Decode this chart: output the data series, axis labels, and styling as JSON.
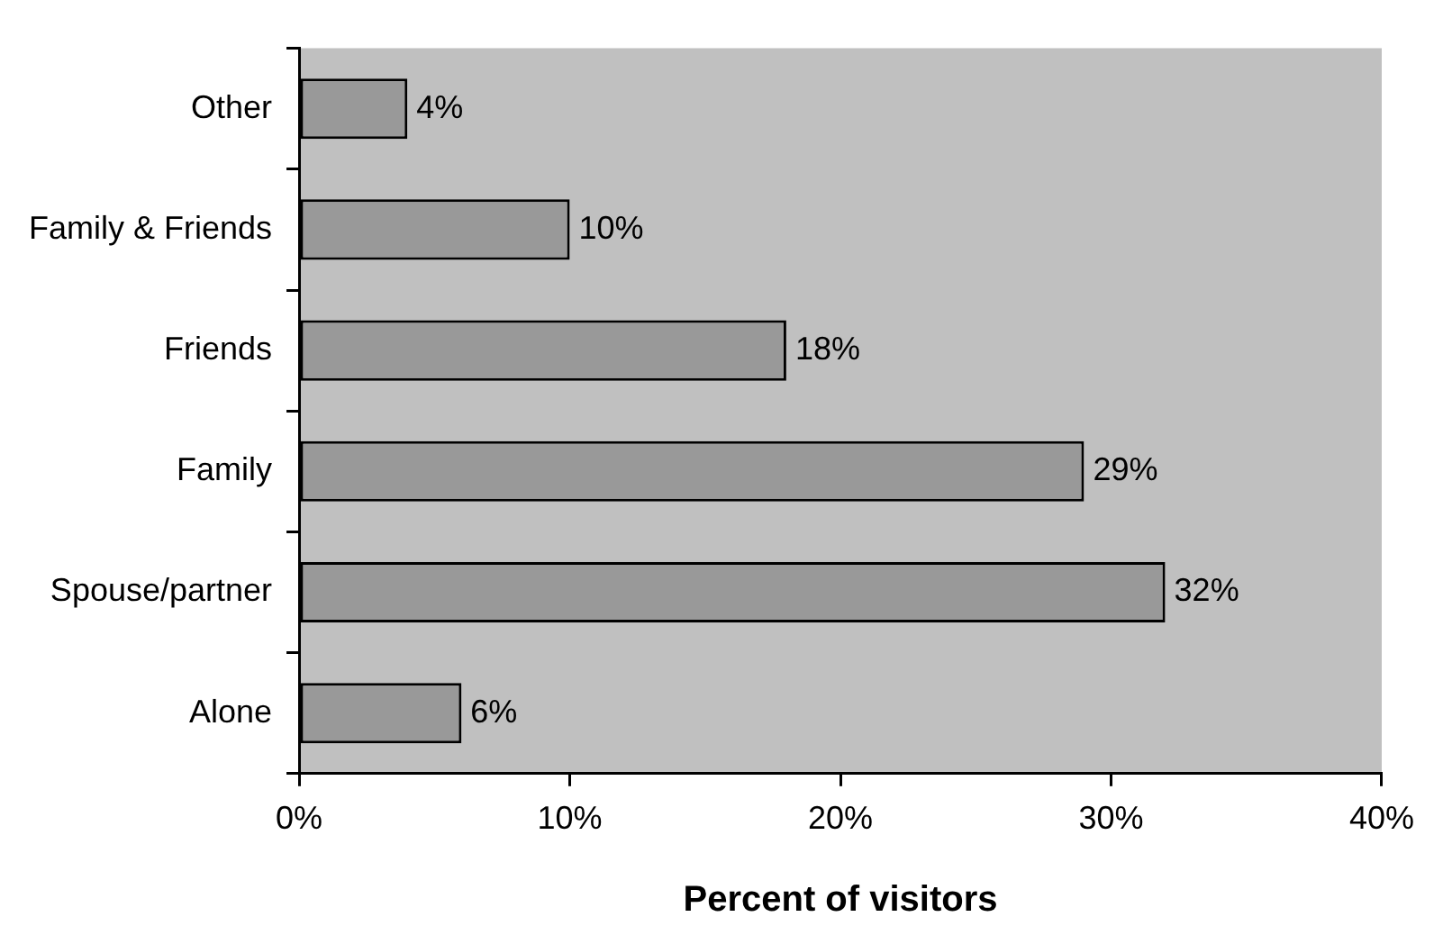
{
  "chart_data": {
    "type": "bar",
    "orientation": "horizontal",
    "xlabel": "Percent of visitors",
    "categories": [
      "Other",
      "Family & Friends",
      "Friends",
      "Family",
      "Spouse/partner",
      "Alone"
    ],
    "values": [
      4,
      10,
      18,
      29,
      32,
      6
    ],
    "value_labels": [
      "4%",
      "10%",
      "18%",
      "29%",
      "32%",
      "6%"
    ],
    "color": "#999999",
    "xlim": [
      0,
      40
    ],
    "xticks": [
      {
        "value": 0,
        "label": "0%"
      },
      {
        "value": 10,
        "label": "10%"
      },
      {
        "value": 20,
        "label": "20%"
      },
      {
        "value": 30,
        "label": "30%"
      },
      {
        "value": 40,
        "label": "40%"
      }
    ],
    "grid": false,
    "legend": false
  }
}
